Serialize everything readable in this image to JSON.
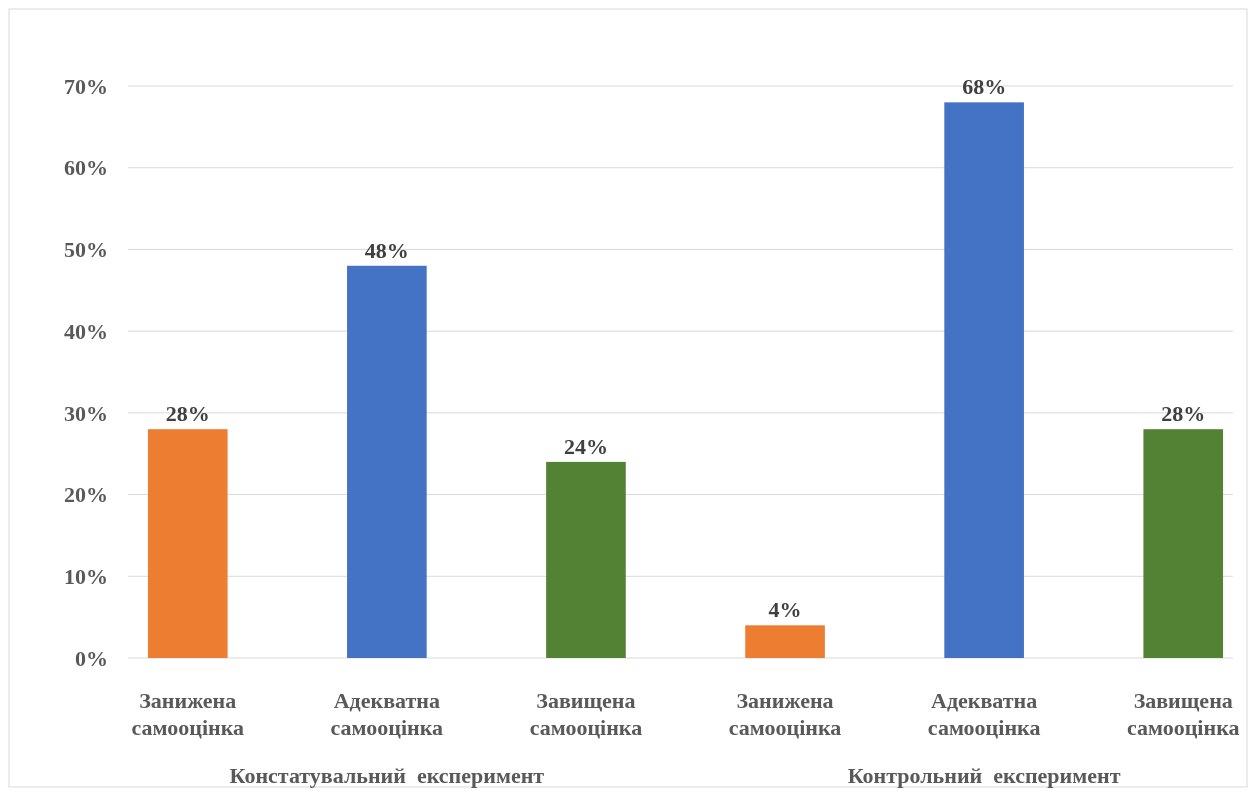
{
  "chart_data": {
    "type": "bar",
    "categories": [
      "Занижена самооцінка",
      "Адекватна самооцінка",
      "Завищена самооцінка",
      "Занижена самооцінка",
      "Адекватна самооцінка",
      "Завищена самооцінка"
    ],
    "values": [
      28,
      48,
      24,
      4,
      68,
      28
    ],
    "colors": [
      "#ed7d31",
      "#4472c4",
      "#548235",
      "#ed7d31",
      "#4472c4",
      "#548235"
    ],
    "value_labels": [
      "28%",
      "48%",
      "24%",
      "4%",
      "68%",
      "28%"
    ],
    "ylim": [
      0,
      70
    ],
    "yticks": [
      {
        "value": 0,
        "label": "0%"
      },
      {
        "value": 10,
        "label": "10%"
      },
      {
        "value": 20,
        "label": "20%"
      },
      {
        "value": 30,
        "label": "30%"
      },
      {
        "value": 40,
        "label": "40%"
      },
      {
        "value": 50,
        "label": "50%"
      },
      {
        "value": 60,
        "label": "60%"
      },
      {
        "value": 70,
        "label": "70%"
      }
    ],
    "grid": "y",
    "annotations": [
      "Констатувальний  експеримент",
      "Контрольний  експеримент"
    ]
  }
}
